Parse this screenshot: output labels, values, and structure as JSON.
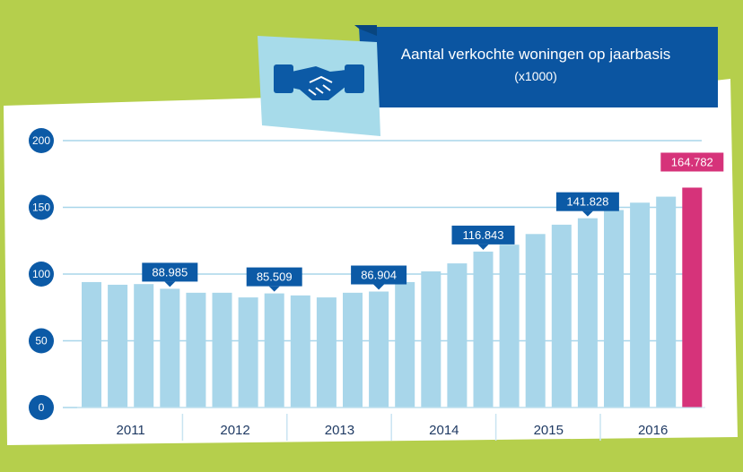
{
  "header": {
    "title": "Aantal verkochte woningen op jaarbasis",
    "subtitle": "(x1000)",
    "icon": "handshake-icon"
  },
  "colors": {
    "background": "#b5cf4c",
    "panel": "#ffffff",
    "bar": "#a8d6ea",
    "highlight": "#d6337a",
    "navy": "#0c5aa6",
    "title_bg": "#0b55a1",
    "icon_bg": "#a7dbea",
    "grid": "#a8d6ea"
  },
  "chart_data": {
    "type": "bar",
    "title": "Aantal verkochte woningen op jaarbasis",
    "subtitle": "(x1000)",
    "ylim": [
      0,
      200
    ],
    "yticks": [
      {
        "value": 0,
        "label": "0"
      },
      {
        "value": 50,
        "label": "50"
      },
      {
        "value": 100,
        "label": "100"
      },
      {
        "value": 150,
        "label": "150"
      },
      {
        "value": 200,
        "label": "200"
      }
    ],
    "years": [
      "2011",
      "2012",
      "2013",
      "2014",
      "2015",
      "2016"
    ],
    "values": [
      94,
      92,
      92.5,
      88.985,
      86,
      86,
      82.5,
      85.509,
      84,
      82.5,
      86,
      86.904,
      94,
      102,
      108,
      116.843,
      122,
      130,
      137,
      141.828,
      148,
      153.5,
      158,
      164.782
    ],
    "highlight_index": 23,
    "callouts": [
      {
        "index": 3,
        "label": "88.985"
      },
      {
        "index": 7,
        "label": "85.509"
      },
      {
        "index": 11,
        "label": "86.904"
      },
      {
        "index": 15,
        "label": "116.843"
      },
      {
        "index": 19,
        "label": "141.828"
      },
      {
        "index": 23,
        "label": "164.782"
      }
    ]
  }
}
